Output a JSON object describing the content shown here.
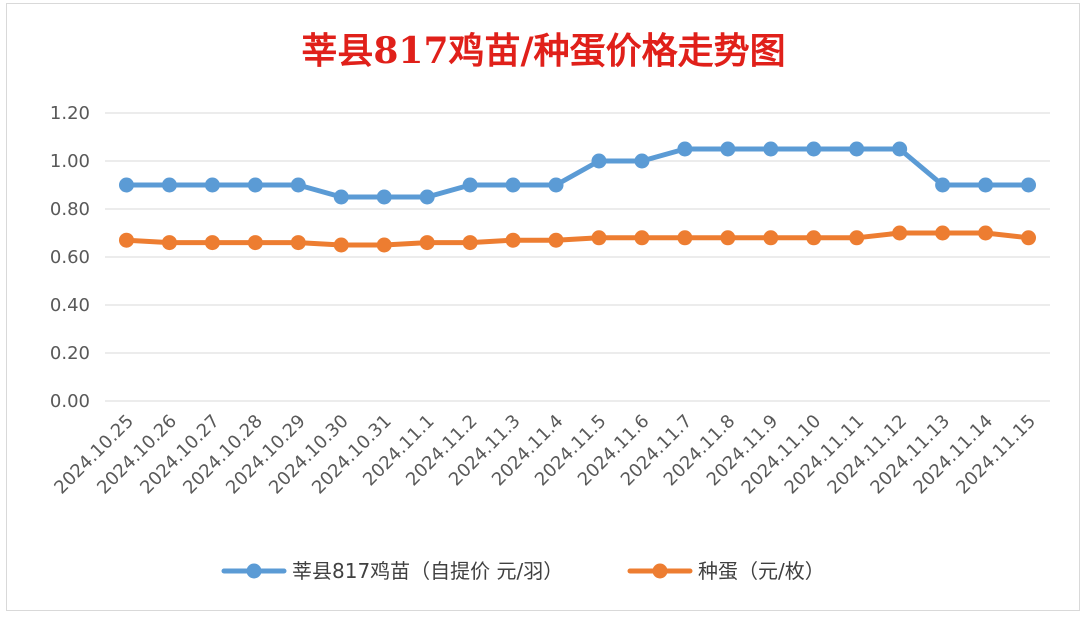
{
  "chart_data": {
    "type": "line",
    "title": "莘县817鸡苗/种蛋价格走势图",
    "categories": [
      "2024.10.25",
      "2024.10.26",
      "2024.10.27",
      "2024.10.28",
      "2024.10.29",
      "2024.10.30",
      "2024.10.31",
      "2024.11.1",
      "2024.11.2",
      "2024.11.3",
      "2024.11.4",
      "2024.11.5",
      "2024.11.6",
      "2024.11.7",
      "2024.11.8",
      "2024.11.9",
      "2024.11.10",
      "2024.11.11",
      "2024.11.12",
      "2024.11.13",
      "2024.11.14",
      "2024.11.15"
    ],
    "yticks": [
      "0.00",
      "0.20",
      "0.40",
      "0.60",
      "0.80",
      "1.00",
      "1.20"
    ],
    "ylim": [
      0,
      1.2
    ],
    "grid": true,
    "legend_position": "bottom",
    "series": [
      {
        "name": "莘县817鸡苗（自提价 元/羽）",
        "color": "#5b9bd5",
        "values": [
          0.9,
          0.9,
          0.9,
          0.9,
          0.9,
          0.85,
          0.85,
          0.85,
          0.9,
          0.9,
          0.9,
          1.0,
          1.0,
          1.05,
          1.05,
          1.05,
          1.05,
          1.05,
          1.05,
          0.9,
          0.9,
          0.9
        ]
      },
      {
        "name": "种蛋（元/枚）",
        "color": "#ed7d31",
        "values": [
          0.67,
          0.66,
          0.66,
          0.66,
          0.66,
          0.65,
          0.65,
          0.66,
          0.66,
          0.67,
          0.67,
          0.68,
          0.68,
          0.68,
          0.68,
          0.68,
          0.68,
          0.68,
          0.7,
          0.7,
          0.7,
          0.68
        ]
      }
    ]
  }
}
